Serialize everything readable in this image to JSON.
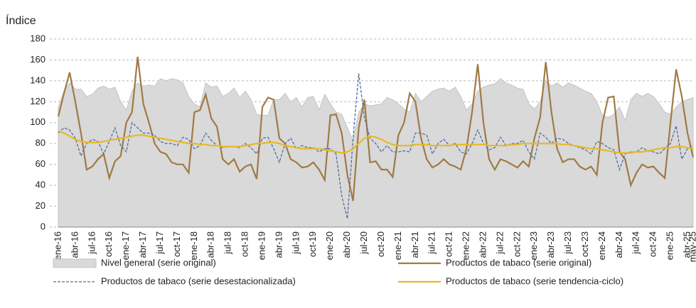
{
  "chart_data": {
    "type": "line",
    "y_axis_label": "Índice",
    "categories": [
      "ene-16",
      null,
      null,
      "abr-16",
      null,
      null,
      "jul-16",
      null,
      null,
      "oct-16",
      null,
      null,
      "ene-17",
      null,
      null,
      "abr-17",
      null,
      null,
      "jul-17",
      null,
      null,
      "oct-17",
      null,
      null,
      "ene-18",
      null,
      null,
      "abr-18",
      null,
      null,
      "jul-18",
      null,
      null,
      "oct-18",
      null,
      null,
      "ene-19",
      null,
      null,
      "abr-19",
      null,
      null,
      "jul-19",
      null,
      null,
      "oct-19",
      null,
      null,
      "ene-20",
      null,
      null,
      "abr-20",
      null,
      null,
      "jul-20",
      null,
      null,
      "oct-20",
      null,
      null,
      "ene-21",
      null,
      null,
      "abr-21",
      null,
      null,
      "jul-21",
      null,
      null,
      "oct-21",
      null,
      null,
      "ene-22",
      null,
      null,
      "abr-22",
      null,
      null,
      "jul-22",
      null,
      null,
      "oct-22",
      null,
      null,
      "ene-23",
      null,
      null,
      "abr-23",
      null,
      null,
      "jul-23",
      null,
      null,
      "oct-23",
      null,
      null,
      "ene-24",
      null,
      null,
      "abr-24",
      null,
      null,
      "jul-24",
      null,
      null,
      "oct-24",
      null,
      null,
      "ene-25",
      null,
      null,
      "abr-25",
      "may-25"
    ],
    "series": [
      {
        "name": "Nivel general (serie original)",
        "style": "area",
        "color": "#d9d9d9",
        "values": [
          115,
          130,
          138,
          132,
          132,
          125,
          127,
          133,
          135,
          132,
          134,
          120,
          112,
          130,
          138,
          135,
          136,
          135,
          142,
          140,
          142,
          141,
          138,
          125,
          118,
          115,
          138,
          134,
          135,
          125,
          128,
          133,
          124,
          130,
          122,
          108,
          107,
          107,
          122,
          122,
          128,
          120,
          124,
          115,
          124,
          125,
          112,
          127,
          118,
          110,
          108,
          95,
          83,
          110,
          118,
          116,
          117,
          118,
          124,
          122,
          118,
          113,
          110,
          128,
          120,
          125,
          130,
          132,
          133,
          130,
          134,
          125,
          112,
          118,
          130,
          134,
          136,
          137,
          142,
          138,
          136,
          133,
          132,
          118,
          113,
          120,
          140,
          135,
          138,
          134,
          138,
          136,
          133,
          130,
          128,
          120,
          107,
          105,
          108,
          115,
          102,
          122,
          128,
          125,
          128,
          125,
          118,
          110,
          108,
          115,
          120,
          122,
          124
        ]
      },
      {
        "name": "Productos de tabaco (serie original)",
        "style": "solid",
        "color": "#a07a45",
        "values": [
          106,
          128,
          148,
          120,
          90,
          55,
          58,
          65,
          70,
          47,
          63,
          68,
          100,
          110,
          163,
          118,
          100,
          80,
          72,
          70,
          62,
          60,
          60,
          52,
          110,
          112,
          127,
          104,
          96,
          65,
          60,
          65,
          53,
          58,
          60,
          46,
          115,
          124,
          122,
          85,
          80,
          65,
          62,
          57,
          58,
          62,
          55,
          45,
          107,
          108,
          90,
          50,
          25,
          95,
          122,
          62,
          63,
          55,
          55,
          48,
          88,
          100,
          128,
          120,
          85,
          65,
          57,
          60,
          65,
          60,
          58,
          55,
          75,
          110,
          156,
          100,
          65,
          55,
          65,
          63,
          60,
          57,
          63,
          58,
          85,
          105,
          158,
          110,
          75,
          62,
          65,
          65,
          58,
          55,
          58,
          50,
          100,
          124,
          125,
          72,
          65,
          40,
          52,
          60,
          57,
          58,
          52,
          47,
          100,
          151,
          125,
          90,
          67
        ]
      },
      {
        "name": "Productos de tabaco (serie desestacionalizada)",
        "style": "dashed",
        "color": "#4f6f9f",
        "values": [
          90,
          95,
          93,
          85,
          68,
          80,
          84,
          82,
          70,
          82,
          95,
          78,
          72,
          100,
          95,
          90,
          90,
          88,
          82,
          80,
          80,
          78,
          86,
          84,
          75,
          78,
          90,
          83,
          78,
          76,
          77,
          77,
          76,
          80,
          76,
          70,
          85,
          86,
          75,
          62,
          80,
          85,
          75,
          78,
          76,
          76,
          72,
          75,
          75,
          70,
          30,
          8,
          85,
          147,
          105,
          85,
          80,
          72,
          78,
          72,
          72,
          73,
          72,
          90,
          90,
          88,
          70,
          80,
          84,
          78,
          80,
          72,
          70,
          80,
          93,
          80,
          74,
          76,
          86,
          78,
          80,
          80,
          83,
          72,
          65,
          90,
          86,
          80,
          85,
          84,
          80,
          78,
          76,
          74,
          70,
          82,
          80,
          76,
          74,
          55,
          70,
          72,
          72,
          76,
          73,
          72,
          70,
          75,
          80,
          97,
          65,
          75,
          78
        ]
      },
      {
        "name": "Productos de tabaco (serie tendencia-ciclo)",
        "style": "solid",
        "color": "#e8b923",
        "values": [
          92,
          90,
          87,
          84,
          82,
          81,
          81,
          81,
          82,
          83,
          84,
          85,
          86,
          87,
          88,
          88,
          87,
          86,
          85,
          84,
          83,
          82,
          81,
          80,
          80,
          79,
          79,
          78,
          78,
          77,
          77,
          77,
          77,
          78,
          79,
          80,
          80,
          81,
          81,
          80,
          78,
          77,
          76,
          75,
          75,
          75,
          75,
          74,
          73,
          72,
          71,
          72,
          75,
          80,
          85,
          87,
          86,
          84,
          81,
          79,
          78,
          78,
          78,
          79,
          79,
          79,
          78,
          78,
          78,
          78,
          79,
          79,
          79,
          79,
          79,
          79,
          78,
          78,
          78,
          78,
          79,
          79,
          80,
          80,
          80,
          80,
          80,
          80,
          80,
          79,
          79,
          78,
          77,
          76,
          75,
          75,
          74,
          73,
          72,
          71,
          71,
          71,
          72,
          72,
          73,
          74,
          75,
          76,
          76,
          77,
          77,
          76,
          75
        ]
      }
    ],
    "ylim": [
      0,
      180
    ],
    "yticks": [
      0,
      20,
      40,
      60,
      80,
      100,
      120,
      140,
      160,
      180
    ],
    "grid": true
  }
}
